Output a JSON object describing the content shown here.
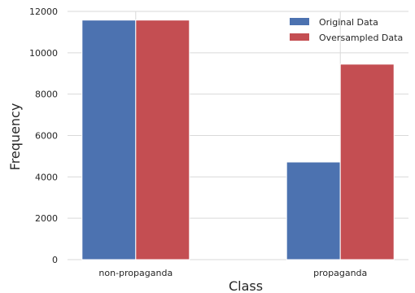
{
  "chart_data": {
    "type": "bar",
    "title": "",
    "xlabel": "Class",
    "ylabel": "Frequency",
    "categories": [
      "non-propaganda",
      "propaganda"
    ],
    "series": [
      {
        "name": "Original Data",
        "color": "#4c72b0",
        "values": [
          11580,
          4720
        ]
      },
      {
        "name": "Oversampled Data",
        "color": "#c44e52",
        "values": [
          11580,
          9450
        ]
      }
    ],
    "ylim": [
      0,
      12000
    ],
    "yticks": [
      0,
      2000,
      4000,
      6000,
      8000,
      10000,
      12000
    ],
    "grid": true,
    "legend": "top-right"
  }
}
